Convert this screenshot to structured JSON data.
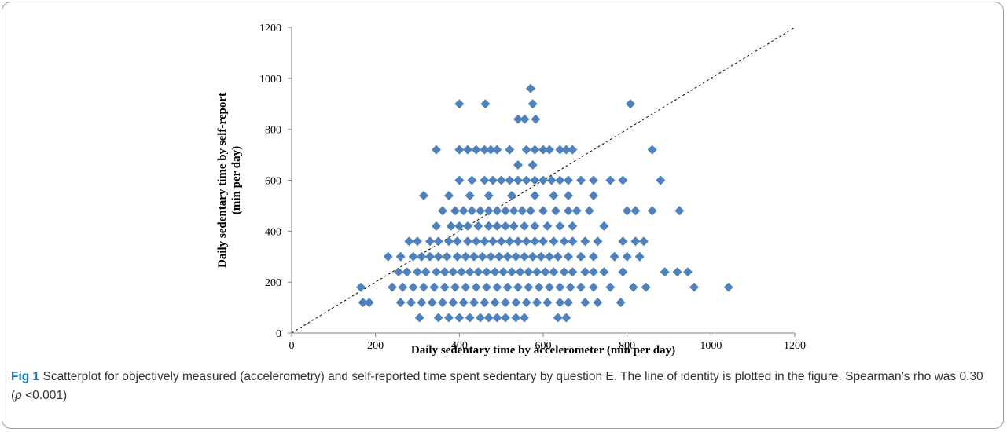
{
  "chart_data": {
    "type": "scatter",
    "xlabel": "Daily sedentary time by accelerometer (min per day)",
    "ylabel_lines": [
      "Daily sedentary time by self-report",
      "(min per day)"
    ],
    "xlim": [
      0,
      1200
    ],
    "ylim": [
      0,
      1200
    ],
    "x_ticks": [
      0,
      200,
      400,
      600,
      800,
      1000,
      1200
    ],
    "y_ticks": [
      0,
      200,
      400,
      600,
      800,
      1000,
      1200
    ],
    "grid": false,
    "legend": "none",
    "marker": "diamond",
    "marker_color": "#4f81bd",
    "reference_line": {
      "name": "line of identity",
      "style": "dashed",
      "from": [
        0,
        0
      ],
      "to": [
        1200,
        1200
      ]
    },
    "series": [
      {
        "points": [
          [
            570,
            960
          ],
          [
            400,
            900
          ],
          [
            462,
            900
          ],
          [
            575,
            900
          ],
          [
            808,
            900
          ],
          [
            540,
            840
          ],
          [
            556,
            840
          ],
          [
            582,
            840
          ],
          [
            345,
            720
          ],
          [
            400,
            720
          ],
          [
            420,
            720
          ],
          [
            440,
            720
          ],
          [
            460,
            720
          ],
          [
            475,
            720
          ],
          [
            490,
            720
          ],
          [
            520,
            720
          ],
          [
            560,
            720
          ],
          [
            580,
            720
          ],
          [
            600,
            720
          ],
          [
            615,
            720
          ],
          [
            640,
            720
          ],
          [
            655,
            720
          ],
          [
            670,
            720
          ],
          [
            860,
            720
          ],
          [
            540,
            660
          ],
          [
            575,
            660
          ],
          [
            400,
            600
          ],
          [
            430,
            600
          ],
          [
            460,
            600
          ],
          [
            480,
            600
          ],
          [
            500,
            600
          ],
          [
            520,
            600
          ],
          [
            540,
            600
          ],
          [
            560,
            600
          ],
          [
            580,
            600
          ],
          [
            600,
            600
          ],
          [
            620,
            600
          ],
          [
            640,
            600
          ],
          [
            660,
            600
          ],
          [
            690,
            600
          ],
          [
            720,
            600
          ],
          [
            760,
            600
          ],
          [
            790,
            600
          ],
          [
            880,
            600
          ],
          [
            315,
            540
          ],
          [
            375,
            540
          ],
          [
            425,
            540
          ],
          [
            470,
            540
          ],
          [
            525,
            540
          ],
          [
            580,
            540
          ],
          [
            625,
            540
          ],
          [
            660,
            540
          ],
          [
            720,
            540
          ],
          [
            360,
            480
          ],
          [
            390,
            480
          ],
          [
            410,
            480
          ],
          [
            430,
            480
          ],
          [
            450,
            480
          ],
          [
            470,
            480
          ],
          [
            490,
            480
          ],
          [
            510,
            480
          ],
          [
            530,
            480
          ],
          [
            550,
            480
          ],
          [
            570,
            480
          ],
          [
            600,
            480
          ],
          [
            630,
            480
          ],
          [
            660,
            480
          ],
          [
            680,
            480
          ],
          [
            710,
            480
          ],
          [
            800,
            480
          ],
          [
            820,
            480
          ],
          [
            860,
            480
          ],
          [
            925,
            480
          ],
          [
            345,
            420
          ],
          [
            380,
            420
          ],
          [
            400,
            420
          ],
          [
            420,
            420
          ],
          [
            445,
            420
          ],
          [
            470,
            420
          ],
          [
            490,
            420
          ],
          [
            510,
            420
          ],
          [
            530,
            420
          ],
          [
            555,
            420
          ],
          [
            580,
            420
          ],
          [
            610,
            420
          ],
          [
            640,
            420
          ],
          [
            670,
            420
          ],
          [
            745,
            420
          ],
          [
            330,
            360
          ],
          [
            350,
            360
          ],
          [
            375,
            360
          ],
          [
            395,
            360
          ],
          [
            420,
            360
          ],
          [
            440,
            360
          ],
          [
            460,
            360
          ],
          [
            480,
            360
          ],
          [
            500,
            360
          ],
          [
            520,
            360
          ],
          [
            540,
            360
          ],
          [
            560,
            360
          ],
          [
            580,
            360
          ],
          [
            600,
            360
          ],
          [
            625,
            360
          ],
          [
            650,
            360
          ],
          [
            670,
            360
          ],
          [
            700,
            360
          ],
          [
            730,
            360
          ],
          [
            790,
            360
          ],
          [
            820,
            360
          ],
          [
            840,
            360
          ],
          [
            280,
            360
          ],
          [
            300,
            360
          ],
          [
            260,
            300
          ],
          [
            290,
            300
          ],
          [
            310,
            300
          ],
          [
            330,
            300
          ],
          [
            350,
            300
          ],
          [
            370,
            300
          ],
          [
            395,
            300
          ],
          [
            415,
            300
          ],
          [
            435,
            300
          ],
          [
            455,
            300
          ],
          [
            475,
            300
          ],
          [
            495,
            300
          ],
          [
            515,
            300
          ],
          [
            535,
            300
          ],
          [
            555,
            300
          ],
          [
            575,
            300
          ],
          [
            595,
            300
          ],
          [
            615,
            300
          ],
          [
            635,
            300
          ],
          [
            660,
            300
          ],
          [
            690,
            300
          ],
          [
            720,
            300
          ],
          [
            770,
            300
          ],
          [
            800,
            300
          ],
          [
            830,
            300
          ],
          [
            230,
            300
          ],
          [
            255,
            240
          ],
          [
            275,
            240
          ],
          [
            300,
            240
          ],
          [
            320,
            240
          ],
          [
            345,
            240
          ],
          [
            365,
            240
          ],
          [
            385,
            240
          ],
          [
            405,
            240
          ],
          [
            425,
            240
          ],
          [
            445,
            240
          ],
          [
            465,
            240
          ],
          [
            485,
            240
          ],
          [
            505,
            240
          ],
          [
            525,
            240
          ],
          [
            545,
            240
          ],
          [
            565,
            240
          ],
          [
            585,
            240
          ],
          [
            605,
            240
          ],
          [
            625,
            240
          ],
          [
            650,
            240
          ],
          [
            670,
            240
          ],
          [
            700,
            240
          ],
          [
            720,
            240
          ],
          [
            745,
            240
          ],
          [
            790,
            240
          ],
          [
            890,
            240
          ],
          [
            920,
            240
          ],
          [
            945,
            240
          ],
          [
            165,
            180
          ],
          [
            240,
            180
          ],
          [
            265,
            180
          ],
          [
            290,
            180
          ],
          [
            315,
            180
          ],
          [
            340,
            180
          ],
          [
            365,
            180
          ],
          [
            390,
            180
          ],
          [
            415,
            180
          ],
          [
            440,
            180
          ],
          [
            465,
            180
          ],
          [
            490,
            180
          ],
          [
            515,
            180
          ],
          [
            540,
            180
          ],
          [
            565,
            180
          ],
          [
            590,
            180
          ],
          [
            615,
            180
          ],
          [
            640,
            180
          ],
          [
            665,
            180
          ],
          [
            690,
            180
          ],
          [
            720,
            180
          ],
          [
            760,
            180
          ],
          [
            815,
            180
          ],
          [
            845,
            180
          ],
          [
            960,
            180
          ],
          [
            1042,
            180
          ],
          [
            170,
            120
          ],
          [
            185,
            120
          ],
          [
            260,
            120
          ],
          [
            285,
            120
          ],
          [
            310,
            120
          ],
          [
            335,
            120
          ],
          [
            360,
            120
          ],
          [
            385,
            120
          ],
          [
            410,
            120
          ],
          [
            435,
            120
          ],
          [
            460,
            120
          ],
          [
            485,
            120
          ],
          [
            510,
            120
          ],
          [
            535,
            120
          ],
          [
            560,
            120
          ],
          [
            585,
            120
          ],
          [
            610,
            120
          ],
          [
            640,
            120
          ],
          [
            660,
            120
          ],
          [
            700,
            120
          ],
          [
            730,
            120
          ],
          [
            785,
            120
          ],
          [
            305,
            60
          ],
          [
            350,
            60
          ],
          [
            375,
            60
          ],
          [
            400,
            60
          ],
          [
            425,
            60
          ],
          [
            450,
            60
          ],
          [
            470,
            60
          ],
          [
            490,
            60
          ],
          [
            510,
            60
          ],
          [
            535,
            60
          ],
          [
            555,
            60
          ],
          [
            635,
            60
          ],
          [
            655,
            60
          ]
        ]
      }
    ]
  },
  "caption": {
    "label": "Fig 1",
    "text_1": " Scatterplot for objectively measured (accelerometry) and self-reported time spent sedentary by question E. The line of identity is plotted in the figure. Spearman’s rho was 0.30 (",
    "italic_p": "p",
    "text_2": " <0.001)"
  }
}
